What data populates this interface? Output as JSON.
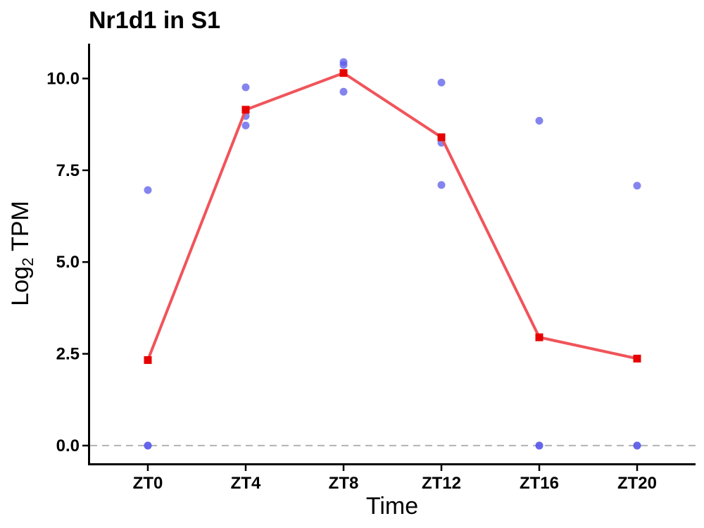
{
  "chart_data": {
    "type": "line",
    "title": "Nr1d1 in S1",
    "xlabel": "Time",
    "ylabel": {
      "prefix": "Log",
      "subscript": "2",
      "suffix": " TPM"
    },
    "categories": [
      "ZT0",
      "ZT4",
      "ZT8",
      "ZT12",
      "ZT16",
      "ZT20"
    ],
    "ylim": [
      -0.5,
      10.95
    ],
    "yticks": [
      0.0,
      2.5,
      5.0,
      7.5,
      10.0
    ],
    "ytick_labels": [
      "0.0",
      "2.5",
      "5.0",
      "7.5",
      "10.0"
    ],
    "reference_line": {
      "y": 0.0,
      "style": "dashed",
      "color": "#b3b3b3"
    },
    "series": [
      {
        "kind": "line-with-square-markers",
        "color": "#f0545a",
        "marker_color": "#e60000",
        "values": [
          2.33,
          9.15,
          10.15,
          8.4,
          2.95,
          2.37
        ]
      },
      {
        "kind": "points",
        "color": "#5b5bea",
        "points": [
          {
            "x": "ZT0",
            "y": 6.96
          },
          {
            "x": "ZT0",
            "y": 0.0
          },
          {
            "x": "ZT0",
            "y": 0.0
          },
          {
            "x": "ZT4",
            "y": 9.76
          },
          {
            "x": "ZT4",
            "y": 8.98
          },
          {
            "x": "ZT4",
            "y": 8.72
          },
          {
            "x": "ZT8",
            "y": 10.45
          },
          {
            "x": "ZT8",
            "y": 10.37
          },
          {
            "x": "ZT8",
            "y": 9.64
          },
          {
            "x": "ZT12",
            "y": 9.89
          },
          {
            "x": "ZT12",
            "y": 8.25
          },
          {
            "x": "ZT12",
            "y": 7.1
          },
          {
            "x": "ZT16",
            "y": 8.85
          },
          {
            "x": "ZT16",
            "y": 0.0
          },
          {
            "x": "ZT16",
            "y": 0.0
          },
          {
            "x": "ZT20",
            "y": 7.08
          },
          {
            "x": "ZT20",
            "y": 0.0
          },
          {
            "x": "ZT20",
            "y": 0.0
          }
        ]
      }
    ],
    "grid": false,
    "legend": "none"
  }
}
